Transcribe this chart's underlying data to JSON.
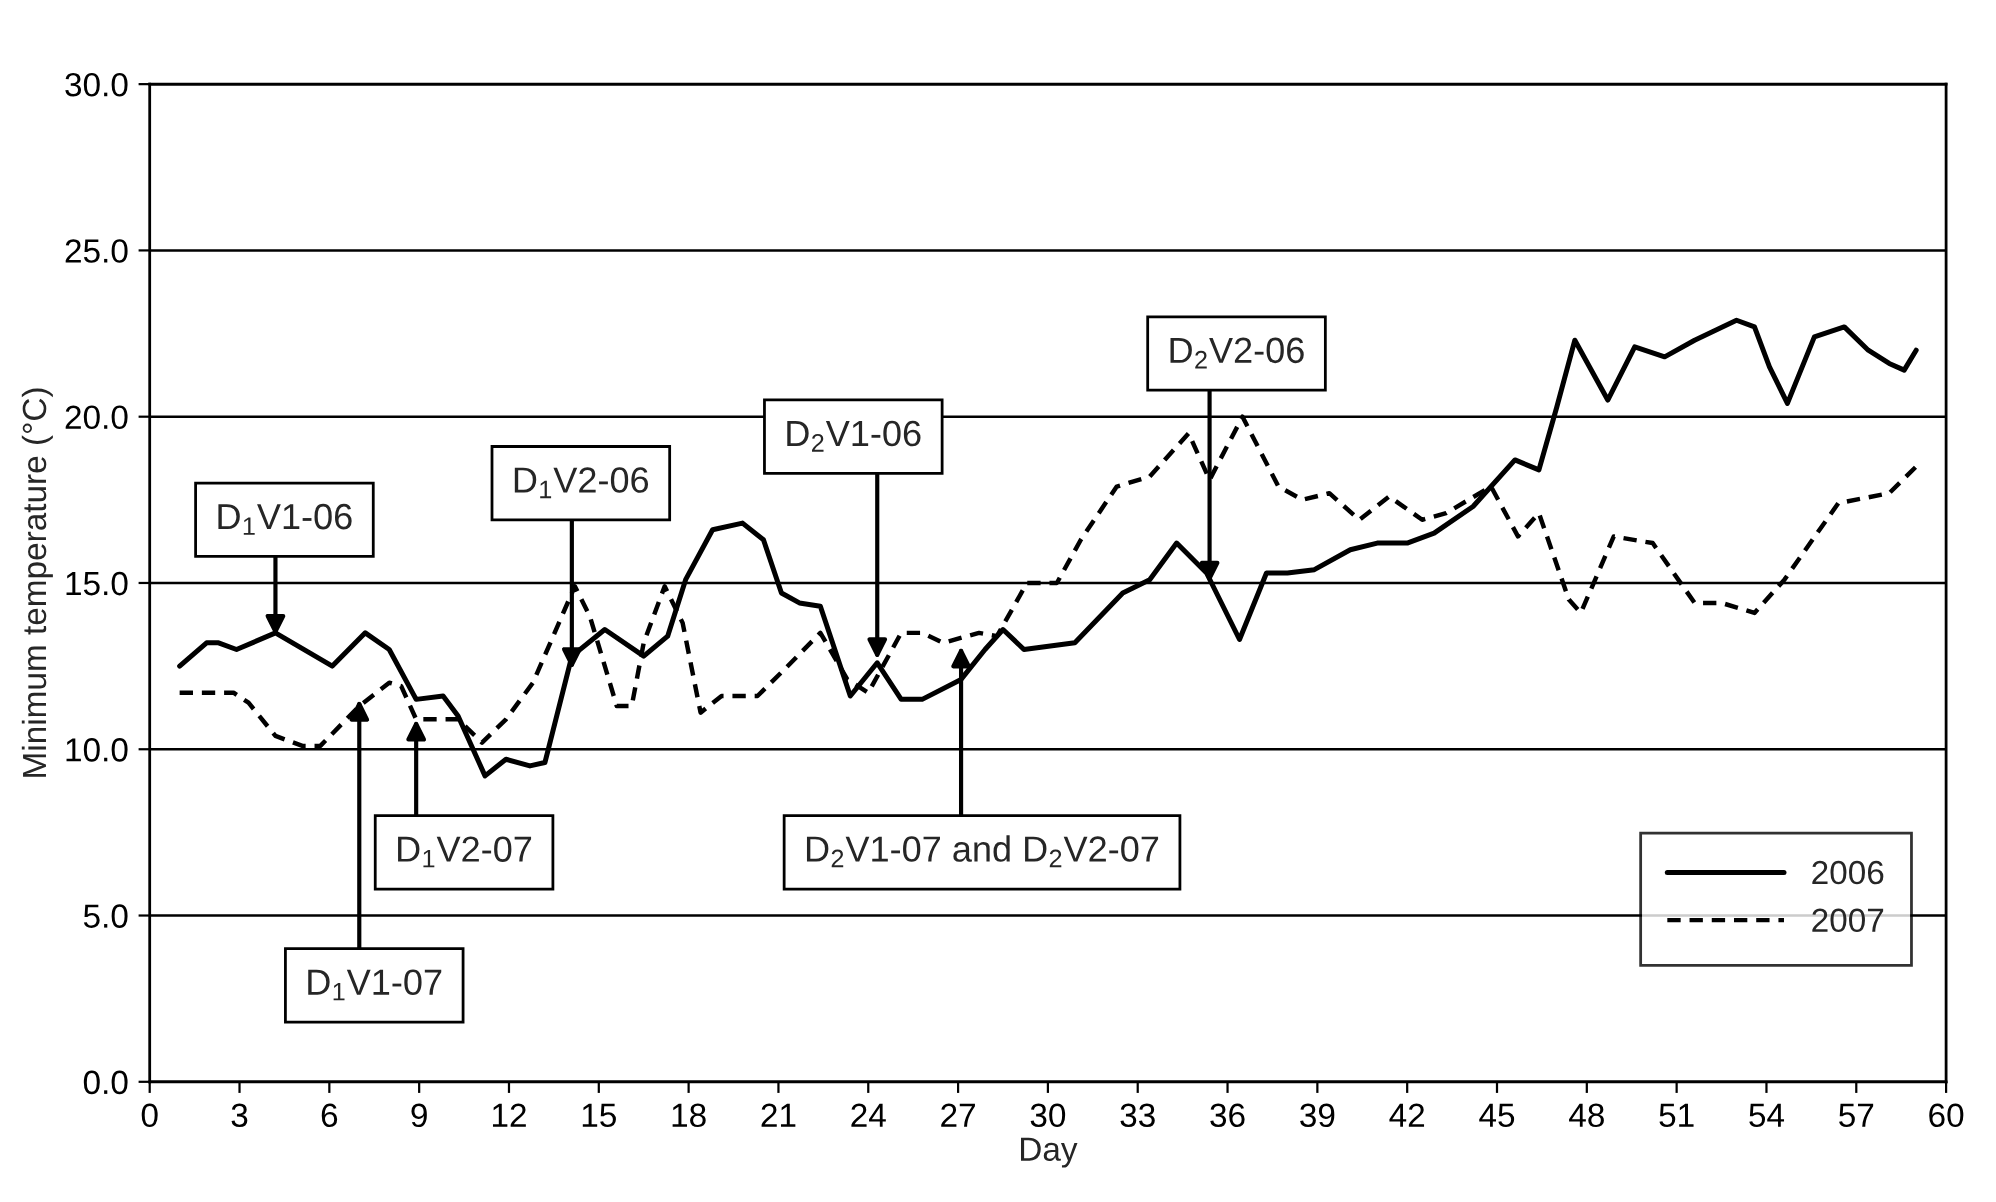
{
  "chart_data": {
    "type": "line",
    "xlabel": "Day",
    "ylabel": "Minimum temperature (°C)",
    "xlim": [
      0,
      60
    ],
    "xticks": [
      0,
      3,
      6,
      9,
      12,
      15,
      18,
      21,
      24,
      27,
      30,
      33,
      36,
      39,
      42,
      45,
      48,
      51,
      54,
      57,
      60
    ],
    "ylim": [
      0,
      30
    ],
    "yticks": [
      {
        "value": 0,
        "label": "0.0"
      },
      {
        "value": 5,
        "label": "5.0"
      },
      {
        "value": 10,
        "label": "10.0"
      },
      {
        "value": 15,
        "label": "15.0"
      },
      {
        "value": 20,
        "label": "20.0"
      },
      {
        "value": 25,
        "label": "25.0"
      },
      {
        "value": 30,
        "label": "30.0"
      }
    ],
    "grid": "y",
    "legend": "bottom right",
    "series": [
      {
        "name": "2006",
        "color": "#000000",
        "line_style": "solid",
        "x": [
          1.0,
          1.9,
          2.3,
          2.9,
          4.2,
          6.1,
          7.2,
          8.0,
          8.9,
          9.8,
          10.3,
          11.2,
          11.9,
          12.7,
          13.2,
          14.1,
          15.2,
          16.5,
          17.3,
          17.9,
          18.8,
          19.8,
          20.5,
          21.1,
          21.7,
          22.4,
          23.4,
          24.3,
          25.1,
          25.8,
          27.1,
          27.9,
          28.5,
          29.2,
          30.9,
          32.5,
          33.4,
          34.3,
          35.3,
          36.4,
          37.3,
          38.0,
          38.9,
          40.1,
          41.0,
          42.0,
          42.9,
          44.2,
          45.6,
          46.4,
          47.0,
          47.6,
          48.7,
          49.6,
          50.6,
          51.6,
          53.0,
          53.6,
          54.1,
          54.7,
          55.6,
          56.6,
          57.4,
          58.1,
          58.6,
          59.0
        ],
        "values": [
          12.5,
          13.2,
          13.2,
          13.0,
          13.5,
          12.5,
          13.5,
          13.0,
          11.5,
          11.6,
          11.0,
          9.2,
          9.7,
          9.5,
          9.6,
          12.8,
          13.6,
          12.8,
          13.4,
          15.1,
          16.6,
          16.8,
          16.3,
          14.7,
          14.4,
          14.3,
          11.6,
          12.6,
          11.5,
          11.5,
          12.1,
          13.0,
          13.6,
          13.0,
          13.2,
          14.7,
          15.1,
          16.2,
          15.3,
          13.3,
          15.3,
          15.3,
          15.4,
          16.0,
          16.2,
          16.2,
          16.5,
          17.3,
          18.7,
          18.4,
          20.3,
          22.3,
          20.5,
          22.1,
          21.8,
          22.3,
          22.9,
          22.7,
          21.5,
          20.4,
          22.4,
          22.7,
          22.0,
          21.6,
          21.4,
          22.0
        ]
      },
      {
        "name": "2007",
        "color": "#000000",
        "line_style": "dashed",
        "x": [
          1.0,
          2.8,
          3.3,
          4.2,
          5.1,
          5.7,
          7.0,
          8.0,
          8.4,
          8.9,
          9.9,
          10.3,
          11.1,
          11.9,
          12.8,
          14.2,
          14.7,
          15.6,
          16.1,
          16.5,
          17.2,
          17.8,
          18.4,
          19.1,
          20.3,
          21.2,
          22.4,
          23.3,
          24.0,
          25.1,
          25.8,
          26.5,
          27.7,
          28.3,
          29.3,
          30.3,
          31.1,
          32.3,
          33.4,
          34.7,
          35.4,
          36.5,
          37.7,
          38.5,
          39.4,
          40.4,
          41.4,
          42.5,
          43.3,
          44.8,
          45.7,
          46.4,
          47.4,
          47.8,
          48.9,
          50.2,
          51.6,
          52.5,
          53.6,
          54.6,
          56.4,
          58.1,
          59.0
        ],
        "values": [
          11.7,
          11.7,
          11.4,
          10.4,
          10.1,
          10.1,
          11.3,
          12.0,
          11.9,
          10.9,
          10.9,
          10.9,
          10.2,
          10.9,
          12.0,
          14.9,
          14.0,
          11.3,
          11.3,
          13.2,
          14.9,
          13.8,
          11.1,
          11.6,
          11.6,
          12.4,
          13.5,
          12.1,
          11.7,
          13.5,
          13.5,
          13.2,
          13.5,
          13.4,
          15.0,
          15.0,
          16.3,
          17.9,
          18.2,
          19.5,
          18.1,
          20.0,
          17.9,
          17.5,
          17.7,
          16.9,
          17.6,
          16.9,
          17.1,
          17.9,
          16.4,
          17.1,
          14.5,
          14.1,
          16.4,
          16.2,
          14.4,
          14.4,
          14.1,
          15.1,
          17.4,
          17.7,
          18.5
        ]
      }
    ],
    "annotations": [
      {
        "text": "D$_{1}$V1-06",
        "x": 4.2,
        "y": 13.4
      },
      {
        "text": "D$_{1}$V1-07",
        "x": 7.0,
        "y": 11.5
      },
      {
        "text": "D$_{1}$V2-07",
        "x": 8.9,
        "y": 10.9
      },
      {
        "text": "D$_{1}$V2-06",
        "x": 14.1,
        "y": 12.4
      },
      {
        "text": "D$_{2}$V1-06",
        "x": 24.3,
        "y": 12.7
      },
      {
        "text": "D$_{2}$V1-07 and D$_{2}$V2-07",
        "x": 27.1,
        "y": 13.1
      },
      {
        "text": "D$_{2}$V2-06",
        "x": 35.4,
        "y": 15.0
      }
    ]
  }
}
